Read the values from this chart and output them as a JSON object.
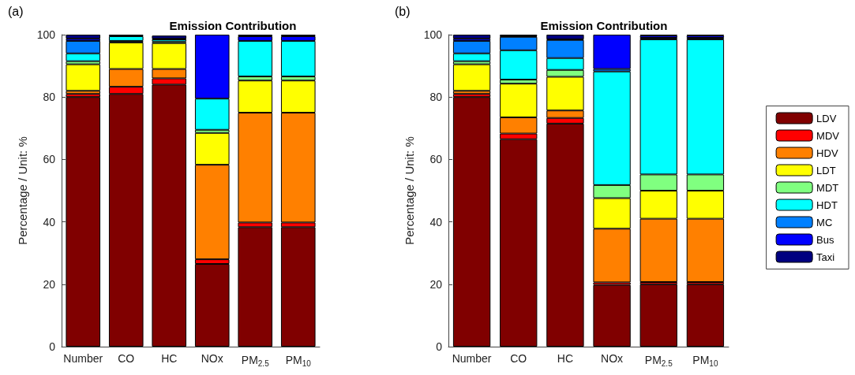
{
  "chart_data": [
    {
      "type": "bar",
      "title": "Emission Contribution",
      "ylabel": "Percentage / Unit: %",
      "annotations": [
        "(a)"
      ],
      "stacked": true,
      "legend": false,
      "grid": false,
      "ylim": [
        0,
        100
      ],
      "yticks": [
        0,
        20,
        40,
        60,
        80,
        100
      ],
      "categories": [
        "Number",
        "CO",
        "HC",
        "NOx",
        "PM$_{2.5}$",
        "PM$_{10}$"
      ],
      "series": [
        {
          "color": "#800000",
          "values": [
            80,
            81,
            84,
            26.5,
            38.3,
            38.3
          ]
        },
        {
          "color": "#ff0000",
          "values": [
            1,
            2.3,
            2,
            1.5,
            1.5,
            1.5
          ]
        },
        {
          "color": "#ff8000",
          "values": [
            1,
            5.7,
            3,
            30.3,
            35.2,
            35.2
          ]
        },
        {
          "color": "#ffff00",
          "values": [
            8.5,
            8.5,
            8.3,
            10.2,
            10.3,
            10.3
          ]
        },
        {
          "color": "#80ff80",
          "values": [
            1,
            0.5,
            0.5,
            1,
            1.3,
            1.3
          ]
        },
        {
          "color": "#00ffff",
          "values": [
            2.5,
            1.5,
            0.7,
            10,
            11.4,
            11.4
          ]
        },
        {
          "color": "#0080ff",
          "values": [
            4,
            0,
            null,
            0,
            0,
            0
          ]
        },
        {
          "color": "#0000ff",
          "values": [
            0.7,
            0,
            0.2,
            20.5,
            1.5,
            1.5
          ]
        },
        {
          "color": "#000080",
          "values": [
            1.3,
            0.5,
            1,
            0,
            0.5,
            0.5
          ]
        }
      ]
    },
    {
      "type": "bar",
      "title": "Emission Contribution",
      "ylabel": "Percentage / Unit: %",
      "annotations": [
        "(b)"
      ],
      "stacked": true,
      "legend": "right",
      "grid": false,
      "ylim": [
        0,
        100
      ],
      "yticks": [
        0,
        20,
        40,
        60,
        80,
        100
      ],
      "categories": [
        "Number",
        "CO",
        "HC",
        "NOx",
        "PM$_{2.5}$",
        "PM$_{10}$"
      ],
      "series": [
        {
          "name": "LDV",
          "color": "#800000",
          "values": [
            80,
            66.5,
            71.5,
            19.8,
            20,
            20
          ]
        },
        {
          "name": "MDV",
          "color": "#ff0000",
          "values": [
            1,
            1.8,
            1.8,
            0.8,
            0.7,
            0.7
          ]
        },
        {
          "name": "HDV",
          "color": "#ff8000",
          "values": [
            1,
            5.2,
            2.4,
            17.2,
            20.3,
            20.3
          ]
        },
        {
          "name": "LDT",
          "color": "#ffff00",
          "values": [
            8.5,
            10.8,
            10.8,
            9.8,
            9,
            9
          ]
        },
        {
          "name": "MDT",
          "color": "#80ff80",
          "values": [
            1,
            1.3,
            2.2,
            4.2,
            5.2,
            5.2
          ]
        },
        {
          "name": "HDT",
          "color": "#00ffff",
          "values": [
            2.5,
            9.4,
            3.8,
            36.4,
            43.3,
            43.3
          ]
        },
        {
          "name": "MC",
          "color": "#0080ff",
          "values": [
            4,
            4.3,
            5.8,
            0.8,
            0.5,
            0.5
          ]
        },
        {
          "name": "Bus",
          "color": "#0000ff",
          "values": [
            0.7,
            0.2,
            0.2,
            11,
            0.7,
            0.7
          ]
        },
        {
          "name": "Taxi",
          "color": "#000080",
          "values": [
            1.3,
            0.5,
            1.5,
            0,
            0.3,
            0.3
          ]
        }
      ]
    }
  ]
}
